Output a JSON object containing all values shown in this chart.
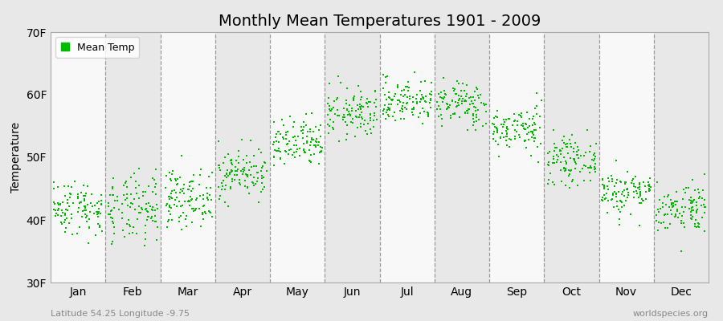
{
  "title": "Monthly Mean Temperatures 1901 - 2009",
  "ylabel": "Temperature",
  "xlabel_bottom_left": "Latitude 54.25 Longitude -9.75",
  "xlabel_bottom_right": "worldspecies.org",
  "ylim": [
    30,
    70
  ],
  "yticks": [
    30,
    40,
    50,
    60,
    70
  ],
  "ytick_labels": [
    "30F",
    "40F",
    "50F",
    "60F",
    "70F"
  ],
  "months": [
    "Jan",
    "Feb",
    "Mar",
    "Apr",
    "May",
    "Jun",
    "Jul",
    "Aug",
    "Sep",
    "Oct",
    "Nov",
    "Dec"
  ],
  "dot_color": "#00bb00",
  "background_color": "#e8e8e8",
  "alt_band_color": "#f8f8f8",
  "legend_label": "Mean Temp",
  "years": 109,
  "start_year": 1901,
  "end_year": 2009,
  "mean_temps_F": [
    42.0,
    41.5,
    43.5,
    47.5,
    52.0,
    57.0,
    59.0,
    58.5,
    54.5,
    49.5,
    44.5,
    42.0
  ],
  "std_temps_F": [
    2.2,
    2.8,
    2.2,
    2.0,
    2.0,
    2.0,
    1.8,
    1.8,
    1.8,
    1.8,
    1.8,
    2.0
  ],
  "title_fontsize": 14,
  "axis_fontsize": 10,
  "legend_fontsize": 9,
  "dot_size": 3
}
